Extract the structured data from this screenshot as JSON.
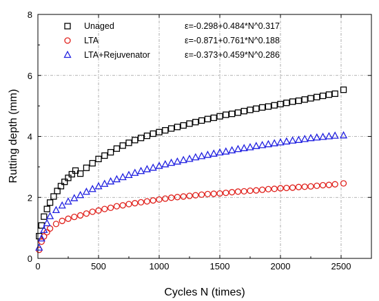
{
  "chart_data": {
    "type": "scatter",
    "xlabel": "Cycles N (times)",
    "ylabel": "Rutting depth (mm)",
    "xlim": [
      0,
      2750
    ],
    "ylim": [
      0,
      8
    ],
    "x_ticks": [
      0,
      500,
      1000,
      1500,
      2000,
      2500
    ],
    "y_ticks": [
      0,
      2,
      4,
      6,
      8
    ],
    "x_tick_labels": [
      "0",
      "500",
      "1000",
      "1500",
      "2000",
      "2500"
    ],
    "y_tick_labels": [
      "0",
      "2",
      "4",
      "6",
      "8"
    ],
    "grid": true,
    "legend_position": "top-left",
    "series": [
      {
        "name": "Unaged",
        "marker": "square",
        "color": "#000000",
        "equation": "ε=-0.298+0.484*N^0.317",
        "x": [
          10,
          30,
          50,
          75,
          100,
          130,
          160,
          190,
          220,
          250,
          280,
          310,
          350,
          400,
          450,
          500,
          550,
          600,
          650,
          700,
          750,
          800,
          850,
          900,
          950,
          1000,
          1050,
          1100,
          1150,
          1200,
          1250,
          1300,
          1350,
          1400,
          1450,
          1500,
          1550,
          1600,
          1650,
          1700,
          1750,
          1800,
          1850,
          1900,
          1950,
          2000,
          2050,
          2100,
          2150,
          2200,
          2250,
          2300,
          2350,
          2400,
          2450,
          2520
        ],
        "y": [
          0.73,
          1.08,
          1.37,
          1.62,
          1.83,
          2.03,
          2.21,
          2.37,
          2.51,
          2.64,
          2.76,
          2.88,
          2.78,
          2.97,
          3.12,
          3.26,
          3.37,
          3.48,
          3.6,
          3.7,
          3.79,
          3.88,
          3.95,
          4.02,
          4.09,
          4.14,
          4.2,
          4.26,
          4.31,
          4.36,
          4.42,
          4.47,
          4.52,
          4.57,
          4.61,
          4.66,
          4.71,
          4.74,
          4.78,
          4.83,
          4.87,
          4.91,
          4.95,
          4.98,
          5.02,
          5.06,
          5.1,
          5.14,
          5.17,
          5.21,
          5.25,
          5.29,
          5.33,
          5.37,
          5.4,
          5.53
        ]
      },
      {
        "name": "LTA",
        "marker": "circle",
        "color": "#e0201b",
        "equation": "ε=-0.871+0.761*N^0.188",
        "x": [
          10,
          30,
          50,
          75,
          100,
          150,
          200,
          250,
          300,
          350,
          400,
          450,
          500,
          550,
          600,
          650,
          700,
          750,
          800,
          850,
          900,
          950,
          1000,
          1050,
          1100,
          1150,
          1200,
          1250,
          1300,
          1350,
          1400,
          1450,
          1500,
          1550,
          1600,
          1650,
          1700,
          1750,
          1800,
          1850,
          1900,
          1950,
          2000,
          2050,
          2100,
          2150,
          2200,
          2250,
          2300,
          2350,
          2400,
          2450,
          2520
        ],
        "y": [
          0.28,
          0.55,
          0.72,
          0.86,
          0.98,
          1.13,
          1.23,
          1.3,
          1.36,
          1.41,
          1.47,
          1.53,
          1.57,
          1.62,
          1.66,
          1.71,
          1.74,
          1.78,
          1.81,
          1.84,
          1.87,
          1.9,
          1.93,
          1.96,
          1.99,
          2.01,
          2.03,
          2.05,
          2.07,
          2.09,
          2.11,
          2.12,
          2.13,
          2.15,
          2.17,
          2.19,
          2.2,
          2.22,
          2.23,
          2.25,
          2.27,
          2.28,
          2.3,
          2.31,
          2.32,
          2.34,
          2.35,
          2.36,
          2.38,
          2.4,
          2.41,
          2.43,
          2.46
        ]
      },
      {
        "name": "LTA+Rejuvenator",
        "marker": "triangle",
        "color": "#1f1fe0",
        "equation": "ε=-0.373+0.459*N^0.286",
        "x": [
          10,
          30,
          50,
          75,
          100,
          150,
          200,
          250,
          300,
          350,
          400,
          450,
          500,
          550,
          600,
          650,
          700,
          750,
          800,
          850,
          900,
          950,
          1000,
          1050,
          1100,
          1150,
          1200,
          1250,
          1300,
          1350,
          1400,
          1450,
          1500,
          1550,
          1600,
          1650,
          1700,
          1750,
          1800,
          1850,
          1900,
          1950,
          2000,
          2050,
          2100,
          2150,
          2200,
          2250,
          2300,
          2350,
          2400,
          2450,
          2520
        ],
        "y": [
          0.35,
          0.65,
          0.93,
          1.15,
          1.38,
          1.58,
          1.73,
          1.86,
          1.97,
          2.07,
          2.18,
          2.27,
          2.36,
          2.44,
          2.52,
          2.59,
          2.66,
          2.73,
          2.8,
          2.86,
          2.92,
          2.97,
          3.03,
          3.08,
          3.13,
          3.17,
          3.22,
          3.26,
          3.31,
          3.35,
          3.39,
          3.43,
          3.47,
          3.5,
          3.54,
          3.58,
          3.61,
          3.64,
          3.68,
          3.71,
          3.74,
          3.77,
          3.8,
          3.83,
          3.86,
          3.88,
          3.91,
          3.94,
          3.96,
          3.98,
          4.0,
          4.02,
          4.03
        ]
      }
    ]
  }
}
